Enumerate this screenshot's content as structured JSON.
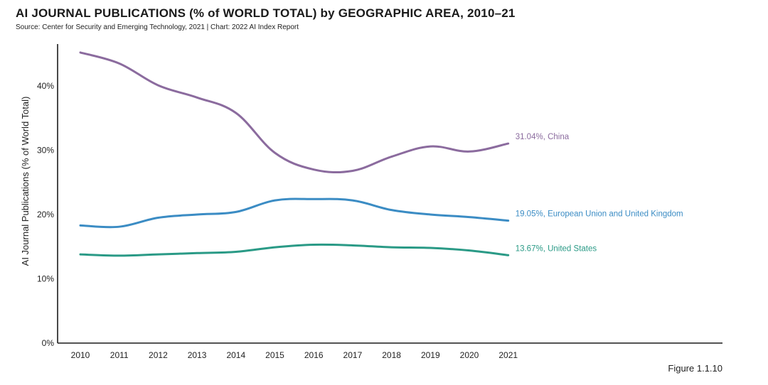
{
  "header": {
    "title": "AI JOURNAL PUBLICATIONS (% of WORLD TOTAL) by GEOGRAPHIC AREA, 2010–21",
    "subtitle": "Source: Center for Security and Emerging Technology, 2021 | Chart: 2022 AI Index Report"
  },
  "footer": {
    "figure_label": "Figure 1.1.10"
  },
  "chart_data": {
    "type": "line",
    "title": "AI JOURNAL PUBLICATIONS (% of WORLD TOTAL) by GEOGRAPHIC AREA, 2010–21",
    "xlabel": "",
    "ylabel": "AI Journal Publications (% of World Total)",
    "x": [
      2010,
      2011,
      2012,
      2013,
      2014,
      2015,
      2016,
      2017,
      2018,
      2019,
      2020,
      2021
    ],
    "x_tick_labels": [
      "2010",
      "2011",
      "2012",
      "2013",
      "2014",
      "2015",
      "2016",
      "2017",
      "2018",
      "2019",
      "2020",
      "2021"
    ],
    "ylim": [
      0,
      47
    ],
    "y_ticks": [
      0,
      10,
      20,
      30,
      40
    ],
    "y_tick_labels": [
      "0%",
      "10%",
      "20%",
      "30%",
      "40%"
    ],
    "grid": false,
    "series": [
      {
        "name": "China",
        "color": "#8b6b9e",
        "label": "31.04%, China",
        "values": [
          45.2,
          43.5,
          40.1,
          38.2,
          35.8,
          29.6,
          27.0,
          26.8,
          29.0,
          30.6,
          29.8,
          31.04
        ]
      },
      {
        "name": "European Union and United Kingdom",
        "color": "#3b8cc4",
        "label": "19.05%, European Union and United Kingdom",
        "values": [
          18.3,
          18.1,
          19.5,
          20.0,
          20.4,
          22.2,
          22.4,
          22.2,
          20.7,
          20.0,
          19.6,
          19.05
        ]
      },
      {
        "name": "United States",
        "color": "#2a9a86",
        "label": "13.67%, United States",
        "values": [
          13.8,
          13.6,
          13.8,
          14.0,
          14.2,
          14.9,
          15.3,
          15.2,
          14.9,
          14.8,
          14.4,
          13.67
        ]
      }
    ]
  }
}
